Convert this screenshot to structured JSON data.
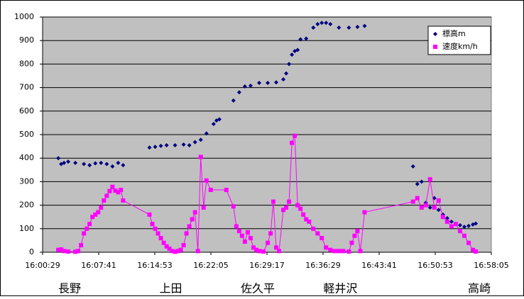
{
  "chart_data": {
    "type": "scatter",
    "xlim": [
      "16:00:29",
      "16:58:05"
    ],
    "xticks": [
      "16:00:29",
      "16:07:41",
      "16:14:53",
      "16:22:05",
      "16:29:17",
      "16:36:29",
      "16:43:41",
      "16:50:53",
      "16:58:05"
    ],
    "ylim": [
      0,
      1000
    ],
    "yticks": [
      0,
      100,
      200,
      300,
      400,
      500,
      600,
      700,
      800,
      900,
      1000
    ],
    "grid": true,
    "legend": "top-right",
    "annotations": [
      {
        "text": "長野",
        "x": "16:03:57"
      },
      {
        "text": "上田",
        "x": "16:16:56"
      },
      {
        "text": "佐久平",
        "x": "16:28:06"
      },
      {
        "text": "軽井沢",
        "x": "16:38:42"
      },
      {
        "text": "高崎",
        "x": "16:56:32"
      }
    ],
    "series": [
      {
        "name": "標高m",
        "color": "#000080",
        "marker": "diamond",
        "line": false,
        "x": [
          "16:02:30",
          "16:02:52",
          "16:03:14",
          "16:03:46",
          "16:04:41",
          "16:05:47",
          "16:06:31",
          "16:07:15",
          "16:07:59",
          "16:08:43",
          "16:09:27",
          "16:10:11",
          "16:10:49",
          "16:14:12",
          "16:14:56",
          "16:15:40",
          "16:16:24",
          "16:17:29",
          "16:18:35",
          "16:19:19",
          "16:20:03",
          "16:20:47",
          "16:21:31",
          "16:22:26",
          "16:22:48",
          "16:23:10",
          "16:24:59",
          "16:25:43",
          "16:26:27",
          "16:27:11",
          "16:28:17",
          "16:29:23",
          "16:30:28",
          "16:31:23",
          "16:31:45",
          "16:32:07",
          "16:32:29",
          "16:32:51",
          "16:33:13",
          "16:33:35",
          "16:34:19",
          "16:35:14",
          "16:35:47",
          "16:36:19",
          "16:36:52",
          "16:37:25",
          "16:38:31",
          "16:39:48",
          "16:40:54",
          "16:41:49",
          "16:48:02",
          "16:48:35",
          "16:49:08",
          "16:49:40",
          "16:50:13",
          "16:50:46",
          "16:51:19",
          "16:51:52",
          "16:52:25",
          "16:52:58",
          "16:53:31",
          "16:54:04",
          "16:54:37",
          "16:55:10",
          "16:55:43",
          "16:56:05"
        ],
        "values": [
          400,
          375,
          380,
          385,
          380,
          375,
          370,
          378,
          380,
          375,
          365,
          380,
          370,
          445,
          448,
          452,
          455,
          455,
          458,
          455,
          468,
          478,
          505,
          545,
          560,
          565,
          645,
          680,
          705,
          708,
          720,
          720,
          722,
          735,
          760,
          800,
          840,
          855,
          860,
          905,
          908,
          955,
          970,
          975,
          975,
          970,
          955,
          955,
          958,
          962,
          365,
          290,
          300,
          210,
          190,
          230,
          180,
          160,
          145,
          130,
          120,
          115,
          108,
          112,
          118,
          122
        ]
      },
      {
        "name": "速度km/h",
        "color": "#ff00ff",
        "marker": "square",
        "line": true,
        "x": [
          "16:02:30",
          "16:02:52",
          "16:03:14",
          "16:03:46",
          "16:04:41",
          "16:05:03",
          "16:05:25",
          "16:05:47",
          "16:06:09",
          "16:06:31",
          "16:06:53",
          "16:07:15",
          "16:07:37",
          "16:07:59",
          "16:08:21",
          "16:08:43",
          "16:09:05",
          "16:09:27",
          "16:09:49",
          "16:10:11",
          "16:10:32",
          "16:10:49",
          "16:14:12",
          "16:14:34",
          "16:14:56",
          "16:15:18",
          "16:15:40",
          "16:16:02",
          "16:16:24",
          "16:16:45",
          "16:17:07",
          "16:17:29",
          "16:17:51",
          "16:18:13",
          "16:18:35",
          "16:18:57",
          "16:19:19",
          "16:19:41",
          "16:20:03",
          "16:20:25",
          "16:20:47",
          "16:21:09",
          "16:21:31",
          "16:22:04",
          "16:24:04",
          "16:24:59",
          "16:25:21",
          "16:25:43",
          "16:26:05",
          "16:26:27",
          "16:26:49",
          "16:27:11",
          "16:27:33",
          "16:27:55",
          "16:28:17",
          "16:28:50",
          "16:29:23",
          "16:29:45",
          "16:30:06",
          "16:30:28",
          "16:30:50",
          "16:31:23",
          "16:31:45",
          "16:32:07",
          "16:32:29",
          "16:32:51",
          "16:33:13",
          "16:33:35",
          "16:33:57",
          "16:34:19",
          "16:34:41",
          "16:35:14",
          "16:35:47",
          "16:36:19",
          "16:36:52",
          "16:37:25",
          "16:37:58",
          "16:38:31",
          "16:39:04",
          "16:39:48",
          "16:40:10",
          "16:40:32",
          "16:40:54",
          "16:41:16",
          "16:41:49",
          "16:48:02",
          "16:48:35",
          "16:49:08",
          "16:49:40",
          "16:50:13",
          "16:50:46",
          "16:51:19",
          "16:51:52",
          "16:52:25",
          "16:52:58",
          "16:53:31",
          "16:54:04",
          "16:54:37",
          "16:55:10",
          "16:55:43",
          "16:56:05"
        ],
        "values": [
          10,
          12,
          5,
          3,
          2,
          5,
          30,
          80,
          100,
          120,
          150,
          160,
          170,
          190,
          220,
          240,
          260,
          278,
          262,
          255,
          265,
          220,
          160,
          120,
          100,
          80,
          60,
          40,
          25,
          15,
          5,
          2,
          5,
          10,
          30,
          80,
          110,
          140,
          170,
          5,
          405,
          190,
          305,
          265,
          265,
          195,
          110,
          90,
          70,
          45,
          85,
          60,
          20,
          10,
          5,
          3,
          40,
          80,
          215,
          20,
          5,
          180,
          190,
          215,
          465,
          495,
          200,
          185,
          160,
          140,
          130,
          100,
          80,
          60,
          20,
          10,
          5,
          5,
          5,
          3,
          40,
          70,
          90,
          5,
          170,
          215,
          230,
          190,
          200,
          310,
          190,
          220,
          150,
          130,
          110,
          120,
          90,
          70,
          40,
          10,
          3
        ]
      }
    ]
  }
}
